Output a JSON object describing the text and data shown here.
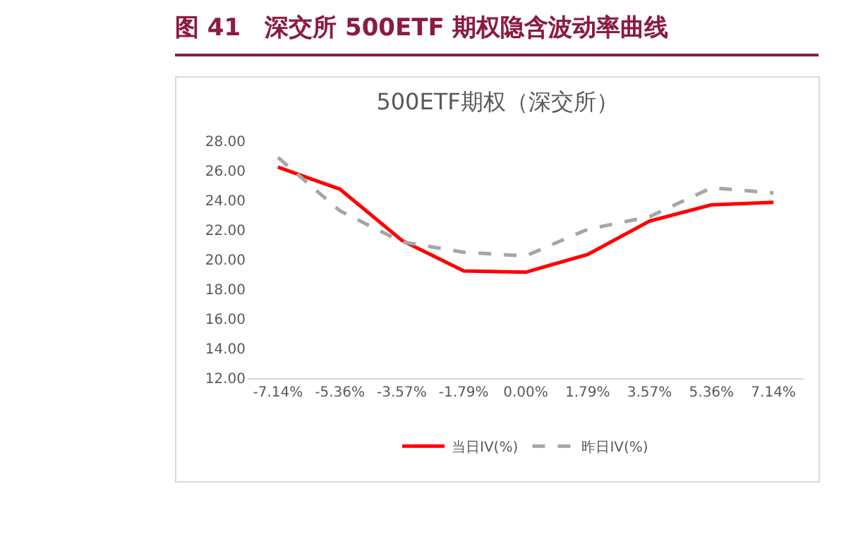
{
  "chart_data": {
    "type": "line",
    "title": "图 41　深交所 500ETF 期权隐含波动率曲线",
    "subtitle": "500ETF期权（深交所）",
    "categories": [
      "-7.14%",
      "-5.36%",
      "-3.57%",
      "-1.79%",
      "0.00%",
      "1.79%",
      "3.57%",
      "5.36%",
      "7.14%"
    ],
    "series": [
      {
        "name": "当日IV(%)",
        "color": "#ff0000",
        "line_style": "solid",
        "values": [
          26.24,
          24.76,
          21.3,
          19.24,
          19.15,
          20.35,
          22.6,
          23.7,
          23.87
        ]
      },
      {
        "name": "昨日IV(%)",
        "color": "#a6a6a6",
        "line_style": "dashed",
        "values": [
          26.9,
          23.3,
          21.2,
          20.5,
          20.25,
          22.05,
          22.9,
          24.85,
          24.5
        ]
      }
    ],
    "ylim": [
      12,
      28
    ],
    "yticks": [
      {
        "value": 12,
        "label": "12.00"
      },
      {
        "value": 14,
        "label": "14.00"
      },
      {
        "value": 16,
        "label": "16.00"
      },
      {
        "value": 18,
        "label": "18.00"
      },
      {
        "value": 20,
        "label": "20.00"
      },
      {
        "value": 22,
        "label": "22.00"
      },
      {
        "value": 24,
        "label": "24.00"
      },
      {
        "value": 26,
        "label": "26.00"
      },
      {
        "value": 28,
        "label": "28.00"
      }
    ],
    "grid": false,
    "legend": "bottom",
    "marker": "none"
  }
}
